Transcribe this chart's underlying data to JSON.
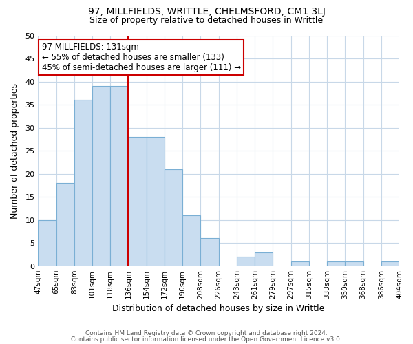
{
  "title": "97, MILLFIELDS, WRITTLE, CHELMSFORD, CM1 3LJ",
  "subtitle": "Size of property relative to detached houses in Writtle",
  "xlabel": "Distribution of detached houses by size in Writtle",
  "ylabel": "Number of detached properties",
  "bar_labels": [
    "47sqm",
    "65sqm",
    "83sqm",
    "101sqm",
    "118sqm",
    "136sqm",
    "154sqm",
    "172sqm",
    "190sqm",
    "208sqm",
    "226sqm",
    "243sqm",
    "261sqm",
    "279sqm",
    "297sqm",
    "315sqm",
    "333sqm",
    "350sqm",
    "368sqm",
    "386sqm",
    "404sqm"
  ],
  "bar_values": [
    10,
    18,
    36,
    39,
    39,
    28,
    28,
    21,
    11,
    6,
    0,
    2,
    3,
    0,
    1,
    0,
    1,
    1,
    0,
    1
  ],
  "bar_color": "#c9ddf0",
  "bar_edge_color": "#7aafd4",
  "vline_x_index": 5,
  "vline_color": "#cc0000",
  "ylim": [
    0,
    50
  ],
  "yticks": [
    0,
    5,
    10,
    15,
    20,
    25,
    30,
    35,
    40,
    45,
    50
  ],
  "annotation_title": "97 MILLFIELDS: 131sqm",
  "annotation_line1": "← 55% of detached houses are smaller (133)",
  "annotation_line2": "45% of semi-detached houses are larger (111) →",
  "annotation_box_color": "#ffffff",
  "annotation_box_edge": "#cc0000",
  "footer_line1": "Contains HM Land Registry data © Crown copyright and database right 2024.",
  "footer_line2": "Contains public sector information licensed under the Open Government Licence v3.0.",
  "background_color": "#ffffff",
  "grid_color": "#c8d8e8"
}
